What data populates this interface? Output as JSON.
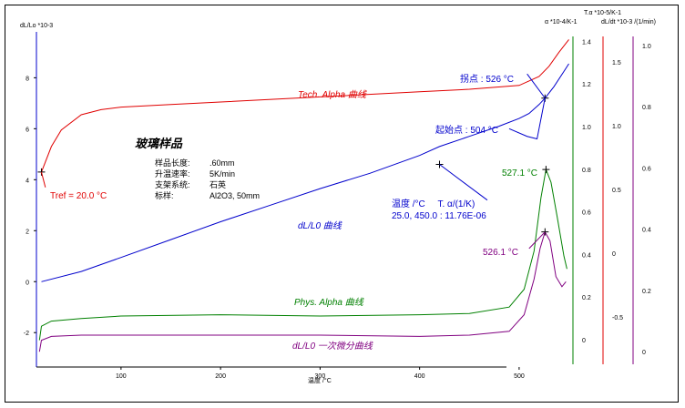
{
  "chart_data": {
    "type": "line",
    "axes": {
      "x": {
        "label": "温度 /°C",
        "ticks": [
          100,
          200,
          300,
          400,
          500
        ],
        "range": [
          15,
          555
        ]
      },
      "y_left": {
        "label": "dL/Lo *10-3",
        "ticks": [
          -2,
          0,
          2,
          4,
          6,
          8
        ],
        "range": [
          -3.35,
          9.8
        ]
      },
      "y_alpha_tech": {
        "label": "T.α *10-5/K-1",
        "ticks": [
          "1.5",
          "1.0",
          "0.5",
          "0",
          "-0.5"
        ],
        "color": "#e00000"
      },
      "y_alpha_phys": {
        "label": "α *10-4/K-1",
        "ticks": [
          "0",
          "0.2",
          "0.4",
          "0.6",
          "0.8",
          "1.0",
          "1.2",
          "1.4"
        ],
        "color": "#008000"
      },
      "y_dldt": {
        "label": "dL/dt *10-3 /(1/min)",
        "ticks": [
          "0",
          "0.2",
          "0.4",
          "0.6",
          "0.8",
          "1.0"
        ],
        "color": "#800080"
      }
    },
    "series": [
      {
        "name": "dL/L0 曲线",
        "color": "#0000cc",
        "x": [
          20,
          60,
          100,
          150,
          200,
          250,
          300,
          350,
          400,
          420,
          450,
          480,
          500,
          510,
          520,
          526,
          535,
          545,
          550
        ],
        "y": [
          0.0,
          0.4,
          0.95,
          1.65,
          2.35,
          3.0,
          3.65,
          4.25,
          4.95,
          5.3,
          5.7,
          6.1,
          6.4,
          6.6,
          6.95,
          7.2,
          7.65,
          8.25,
          8.55
        ]
      },
      {
        "name": "Tech. Alpha 曲线",
        "color": "#e00000",
        "x": [
          20,
          30,
          40,
          60,
          80,
          100,
          150,
          200,
          300,
          400,
          450,
          500,
          520,
          530,
          540,
          550
        ],
        "y": [
          4.3,
          5.3,
          5.95,
          6.55,
          6.75,
          6.85,
          6.95,
          7.05,
          7.25,
          7.45,
          7.55,
          7.7,
          8.05,
          8.45,
          9.0,
          9.5
        ]
      },
      {
        "name": "Phys. Alpha 曲线",
        "color": "#008000",
        "x": [
          18,
          20,
          30,
          60,
          100,
          200,
          300,
          400,
          450,
          490,
          505,
          515,
          522,
          527,
          532,
          538,
          545,
          548
        ],
        "y": [
          -2.3,
          -1.75,
          -1.55,
          -1.45,
          -1.35,
          -1.3,
          -1.35,
          -1.3,
          -1.25,
          -1.0,
          -0.3,
          1.2,
          3.3,
          4.4,
          3.9,
          2.6,
          1.0,
          0.5
        ]
      },
      {
        "name": "dL/L0 一次微分曲线",
        "color": "#800080",
        "x": [
          18,
          20,
          30,
          60,
          100,
          200,
          300,
          400,
          450,
          490,
          505,
          515,
          521,
          526,
          531,
          537,
          543,
          547
        ],
        "y": [
          -2.75,
          -2.3,
          -2.15,
          -2.1,
          -2.1,
          -2.1,
          -2.1,
          -2.15,
          -2.1,
          -1.95,
          -1.3,
          0.1,
          1.3,
          1.95,
          1.6,
          0.2,
          -0.2,
          0.0
        ]
      }
    ],
    "annotations": {
      "inflection": "拐点 : 526 °C",
      "onset": "起始点 : 504 °C",
      "tref": "Tref = 20.0 °C",
      "peak_phys": "527.1 °C",
      "peak_dldt": "526.1 °C",
      "readout_header": "温度 /°C     T. α/(1/K)",
      "readout_value": "25.0, 450.0 : 11.76E-06"
    },
    "sample_info": {
      "title": "玻璃样品",
      "rows": [
        {
          "key": "样品长度:",
          "val": ".60mm"
        },
        {
          "key": "升温速率:",
          "val": "5K/min"
        },
        {
          "key": "支架系统:",
          "val": "石英"
        },
        {
          "key": "标样:",
          "val": "Al2O3, 50mm"
        }
      ]
    }
  }
}
